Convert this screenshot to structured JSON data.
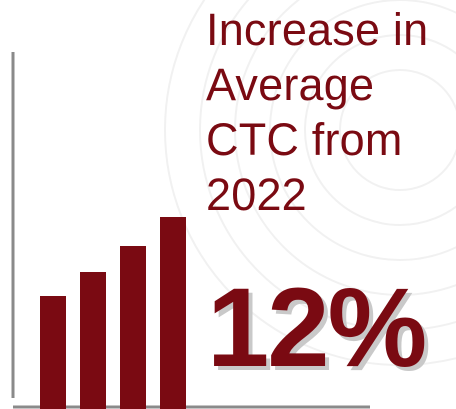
{
  "headline": {
    "lines": [
      "Increase in",
      "Average",
      "CTC from",
      "2022"
    ]
  },
  "stat": {
    "value": "12%"
  },
  "icon": "bar-chart-icon",
  "colors": {
    "accent": "#7a0a12",
    "axis": "#8a8a8a",
    "shadow": "#c9c9c9",
    "background": "#ffffff"
  }
}
